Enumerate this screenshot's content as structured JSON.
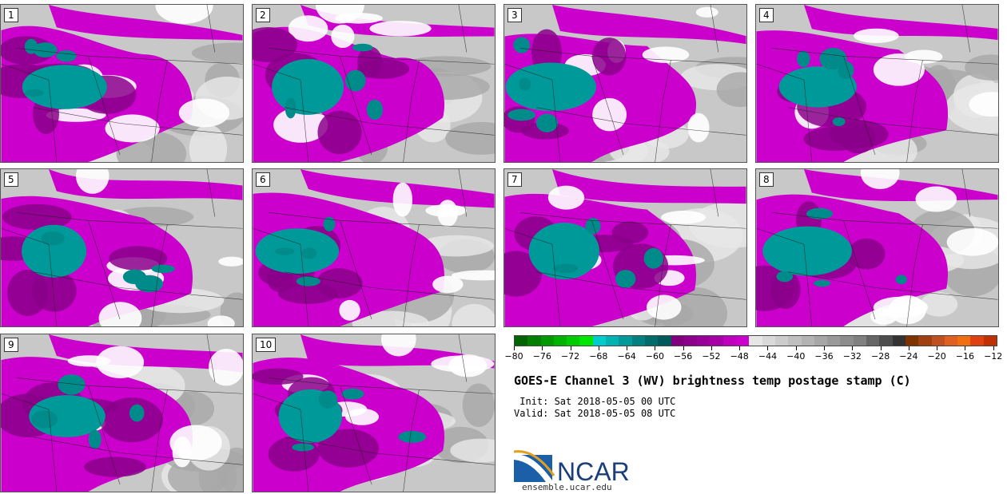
{
  "panels": [
    {
      "label": "1"
    },
    {
      "label": "2"
    },
    {
      "label": "3"
    },
    {
      "label": "4"
    },
    {
      "label": "5"
    },
    {
      "label": "6"
    },
    {
      "label": "7"
    },
    {
      "label": "8"
    },
    {
      "label": "9"
    },
    {
      "label": "10"
    }
  ],
  "colorbar": {
    "colors": [
      "#006400",
      "#007f00",
      "#009900",
      "#00b300",
      "#00cc00",
      "#00e600",
      "#00cccc",
      "#00b3b3",
      "#009999",
      "#008080",
      "#006b6b",
      "#005a5a",
      "#800080",
      "#8c008c",
      "#990099",
      "#a600a6",
      "#bf00bf",
      "#cc00cc",
      "#e6e6e6",
      "#d9d9d9",
      "#cccccc",
      "#bfbfbf",
      "#b3b3b3",
      "#a6a6a6",
      "#999999",
      "#8c8c8c",
      "#808080",
      "#666666",
      "#4d4d4d",
      "#333333",
      "#7f3300",
      "#a04010",
      "#c05020",
      "#e06020",
      "#f07010",
      "#e04010",
      "#c03000"
    ],
    "ticks": [
      "−80",
      "−76",
      "−72",
      "−68",
      "−64",
      "−60",
      "−56",
      "−52",
      "−48",
      "−44",
      "−40",
      "−36",
      "−32",
      "−28",
      "−24",
      "−20",
      "−16",
      "−12"
    ]
  },
  "title": "GOES-E Channel 3 (WV) brightness temp postage stamp (C)",
  "init": " Init: Sat 2018-05-05 00 UTC",
  "valid": "Valid: Sat 2018-05-05 08 UTC",
  "logo": {
    "text": "NCAR",
    "url": "ensemble.ucar.edu"
  }
}
